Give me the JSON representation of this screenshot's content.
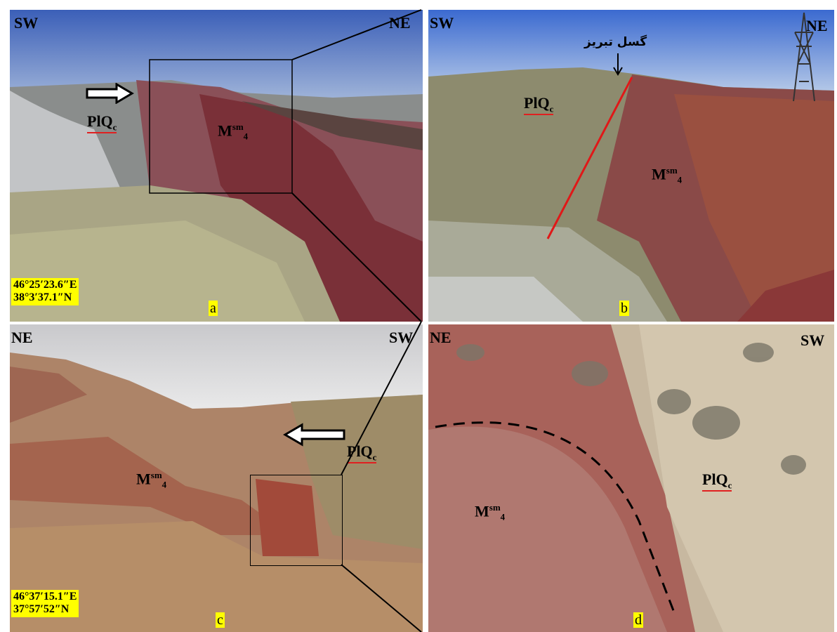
{
  "panels": {
    "a": {
      "letter": "a",
      "dir_left": "SW",
      "dir_right": "NE",
      "unit_plq": "PlQ",
      "unit_plq_sub": "c",
      "unit_m": "M",
      "unit_m_sup": "sm",
      "unit_m_sub": "4",
      "coord_e": "46°25′23.6″E",
      "coord_n": "38°3′37.1″N"
    },
    "b": {
      "letter": "b",
      "dir_left": "SW",
      "dir_right": "NE",
      "fault_label": "گسل تبریز",
      "unit_plq": "PlQ",
      "unit_plq_sub": "c",
      "unit_m": "M",
      "unit_m_sup": "sm",
      "unit_m_sub": "4"
    },
    "c": {
      "letter": "c",
      "dir_left": "NE",
      "dir_right": "SW",
      "unit_plq": "PlQ",
      "unit_plq_sub": "c",
      "unit_m": "M",
      "unit_m_sup": "sm",
      "unit_m_sub": "4",
      "coord_e": "46°37′15.1″E",
      "coord_n": "37°57′52″N"
    },
    "d": {
      "letter": "d",
      "dir_left": "NE",
      "dir_right": "SW",
      "unit_plq": "PlQ",
      "unit_plq_sub": "c",
      "unit_m": "M",
      "unit_m_sup": "sm",
      "unit_m_sub": "4"
    }
  },
  "colors": {
    "fault_line": "#e01818",
    "highlight": "#ffff00",
    "underline": "#e02020"
  }
}
